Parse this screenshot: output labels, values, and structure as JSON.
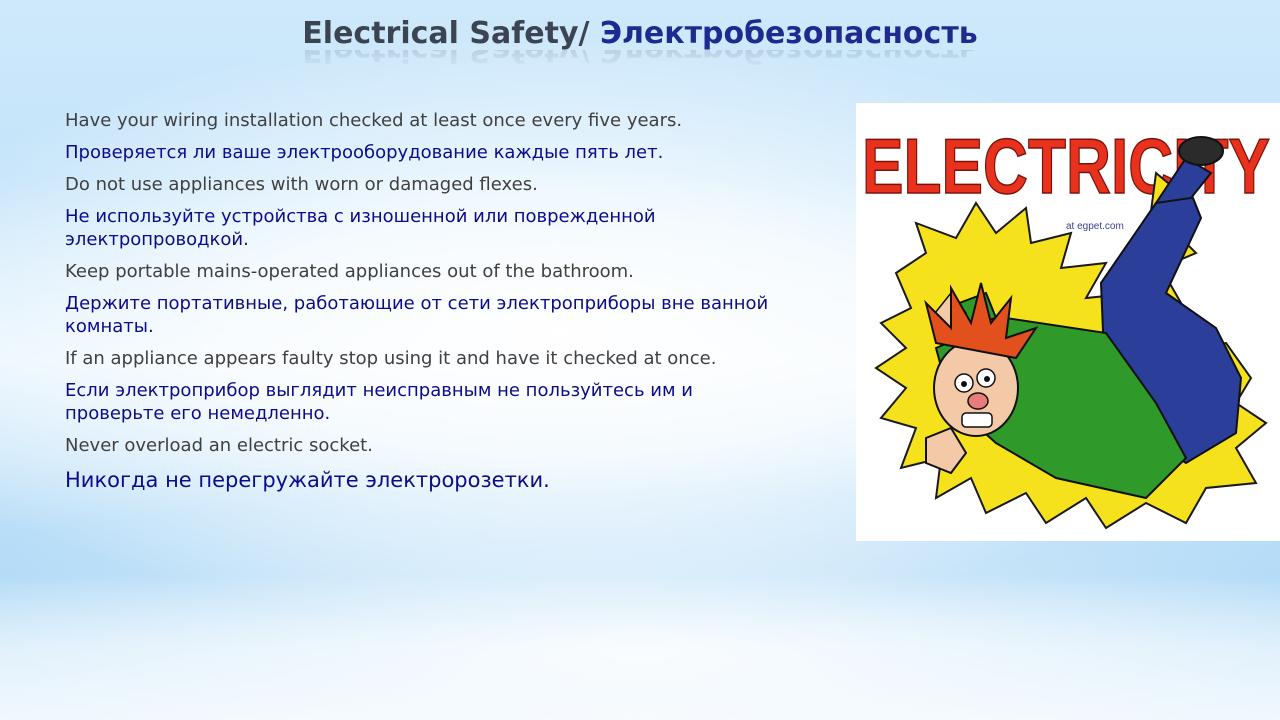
{
  "slide": {
    "title_en": "Electrical Safety/",
    "title_ru": "Электробезопасность",
    "lines": [
      {
        "lang": "en",
        "text": "Have your wiring installation checked at least once every five years."
      },
      {
        "lang": "ru",
        "text": "Проверяется ли ваше электрооборудование каждые пять лет."
      },
      {
        "lang": "en",
        "text": "Do not use appliances with worn or damaged flexes."
      },
      {
        "lang": "ru",
        "text": "Не используйте устройства с изношенной или поврежденной электропроводкой."
      },
      {
        "lang": "en",
        "text": "Keep portable mains-operated appliances out of the bathroom."
      },
      {
        "lang": "ru",
        "text": "Держите портативные, работающие от сети электроприборы вне ванной комнаты."
      },
      {
        "lang": "en",
        "text": "If an appliance appears faulty stop using it and have it checked at once."
      },
      {
        "lang": "ru",
        "text": "Если электроприбор выглядит неисправным не пользуйтесь им и проверьте его немедленно."
      },
      {
        "lang": "en",
        "text": "Never overload an electric socket."
      },
      {
        "lang": "ru",
        "text": "Никогда не перегружайте электророзетки."
      }
    ]
  },
  "illustration": {
    "word": "ELECTRICITY",
    "small_text": "at egpet.com",
    "colors": {
      "letters": "#e8321e",
      "bolt": "#f6e21c",
      "shirt": "#2f9a2a",
      "pants": "#2b3f9a",
      "hair": "#e2501d"
    }
  }
}
